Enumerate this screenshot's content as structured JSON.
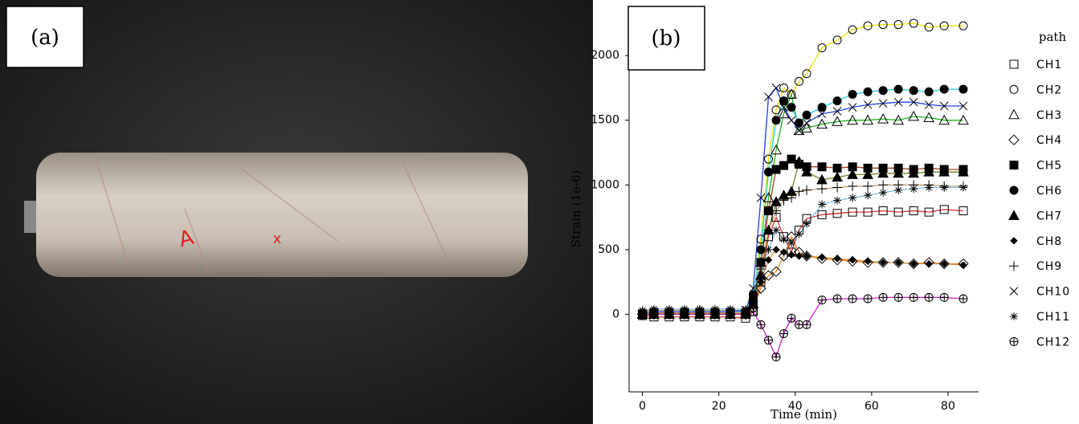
{
  "photo": {
    "label": "(a)",
    "marks": [
      "A",
      "x"
    ]
  },
  "chart_data": {
    "type": "line",
    "label": "(b)",
    "x_label": "Time (min)",
    "y_label": "Strain (1e-6)",
    "legend_title": "path",
    "legend": "right",
    "x": [
      0,
      3,
      7,
      11,
      15,
      19,
      23,
      27,
      29,
      31,
      33,
      35,
      37,
      39,
      41,
      43,
      47,
      51,
      55,
      59,
      63,
      67,
      71,
      75,
      79,
      84
    ],
    "xlim": [
      -3.5,
      88
    ],
    "xticks": [
      0,
      20,
      40,
      60,
      80
    ],
    "ylim": [
      -600,
      2380
    ],
    "yticks": [
      0,
      500,
      1000,
      1500,
      2000
    ],
    "series": [
      {
        "name": "CH1",
        "color": "#e03030",
        "marker": "square",
        "values": [
          -10,
          -20,
          -20,
          -20,
          -20,
          -20,
          -20,
          -30,
          20,
          250,
          600,
          750,
          600,
          480,
          650,
          740,
          770,
          780,
          790,
          790,
          800,
          790,
          800,
          790,
          810,
          800
        ]
      },
      {
        "name": "CH2",
        "color": "#e8e000",
        "marker": "circle",
        "values": [
          0,
          10,
          10,
          10,
          10,
          10,
          10,
          10,
          100,
          580,
          1200,
          1580,
          1750,
          1700,
          1800,
          1860,
          2060,
          2120,
          2200,
          2230,
          2240,
          2240,
          2250,
          2220,
          2230,
          2230
        ]
      },
      {
        "name": "CH3",
        "color": "#20b020",
        "marker": "triangle",
        "values": [
          0,
          0,
          0,
          0,
          0,
          0,
          0,
          10,
          80,
          400,
          900,
          1270,
          1550,
          1700,
          1420,
          1440,
          1470,
          1490,
          1500,
          1500,
          1510,
          1500,
          1530,
          1520,
          1500,
          1500
        ]
      },
      {
        "name": "CH4",
        "color": "#f08020",
        "marker": "diamond",
        "values": [
          0,
          0,
          0,
          0,
          0,
          0,
          0,
          0,
          50,
          200,
          300,
          330,
          450,
          600,
          480,
          450,
          430,
          420,
          410,
          400,
          400,
          400,
          390,
          400,
          390,
          390
        ]
      },
      {
        "name": "CH5",
        "color": "#a04020",
        "marker": "square-filled",
        "values": [
          0,
          10,
          10,
          10,
          10,
          10,
          10,
          10,
          100,
          400,
          800,
          1120,
          1150,
          1200,
          1160,
          1140,
          1140,
          1130,
          1140,
          1130,
          1130,
          1130,
          1120,
          1130,
          1120,
          1120
        ]
      },
      {
        "name": "CH6",
        "color": "#20d0e0",
        "marker": "circle-filled",
        "values": [
          10,
          20,
          20,
          20,
          20,
          20,
          20,
          20,
          150,
          500,
          1100,
          1500,
          1650,
          1600,
          1480,
          1540,
          1600,
          1650,
          1700,
          1720,
          1730,
          1740,
          1730,
          1720,
          1740,
          1740
        ]
      },
      {
        "name": "CH7",
        "color": "#708020",
        "marker": "triangle-filled",
        "values": [
          0,
          0,
          0,
          0,
          0,
          0,
          0,
          0,
          80,
          300,
          650,
          870,
          920,
          950,
          1180,
          1100,
          1040,
          1060,
          1080,
          1080,
          1090,
          1090,
          1090,
          1100,
          1100,
          1100
        ]
      },
      {
        "name": "CH8",
        "color": "#d09040",
        "marker": "diamond-filled",
        "values": [
          0,
          10,
          10,
          10,
          10,
          10,
          10,
          10,
          60,
          250,
          420,
          500,
          480,
          460,
          450,
          450,
          440,
          430,
          420,
          410,
          400,
          400,
          390,
          390,
          390,
          380
        ]
      },
      {
        "name": "CH9",
        "color": "#c0a070",
        "marker": "plus",
        "values": [
          20,
          30,
          30,
          30,
          30,
          30,
          30,
          30,
          100,
          350,
          650,
          800,
          880,
          900,
          950,
          960,
          970,
          980,
          990,
          990,
          1000,
          1000,
          1000,
          1000,
          990,
          990
        ]
      },
      {
        "name": "CH10",
        "color": "#2040e0",
        "marker": "cross",
        "values": [
          10,
          20,
          20,
          20,
          20,
          20,
          20,
          30,
          200,
          900,
          1680,
          1750,
          1600,
          1500,
          1420,
          1480,
          1550,
          1570,
          1600,
          1620,
          1630,
          1640,
          1640,
          1620,
          1610,
          1610
        ]
      },
      {
        "name": "CH11",
        "color": "#80c0e0",
        "marker": "asterisk",
        "values": [
          30,
          40,
          40,
          40,
          40,
          40,
          40,
          40,
          120,
          300,
          500,
          650,
          580,
          550,
          620,
          700,
          850,
          880,
          900,
          920,
          940,
          960,
          970,
          980,
          980,
          980
        ]
      },
      {
        "name": "CH12",
        "color": "#d020d0",
        "marker": "circle-plus",
        "values": [
          -10,
          0,
          0,
          0,
          0,
          0,
          0,
          0,
          20,
          -80,
          -200,
          -330,
          -150,
          -30,
          -80,
          -80,
          110,
          120,
          120,
          120,
          130,
          130,
          130,
          130,
          130,
          120
        ]
      }
    ]
  }
}
